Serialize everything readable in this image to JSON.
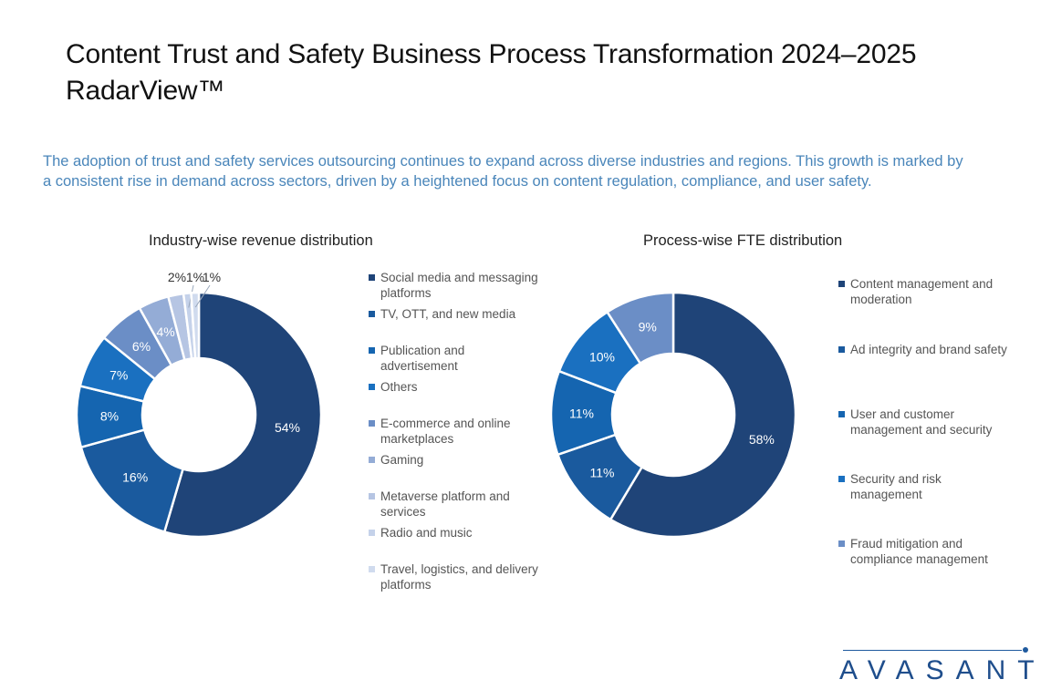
{
  "header": {
    "title": "Content Trust and Safety Business Process Transformation 2024–2025 RadarView™",
    "subtitle": "The adoption of trust and safety services outsourcing continues to expand across diverse industries and regions. This growth is marked by a consistent rise in demand across sectors, driven by a heightened focus on content regulation, compliance, and user safety."
  },
  "brand": {
    "logo_text": "AVASANT",
    "color": "#1f4e8c"
  },
  "chart_data": [
    {
      "type": "pie",
      "variant": "donut",
      "title": "Industry-wise revenue distribution",
      "legend_position": "right",
      "slices": [
        {
          "label": "Social media and messaging platforms",
          "value": 54,
          "display": "54%",
          "color": "#1f4478"
        },
        {
          "label": "TV, OTT, and new media",
          "value": 16,
          "display": "16%",
          "color": "#1a5a9e"
        },
        {
          "label": "Publication and advertisement",
          "value": 8,
          "display": "8%",
          "color": "#1565b0"
        },
        {
          "label": "Others",
          "value": 7,
          "display": "7%",
          "color": "#1a70c0"
        },
        {
          "label": "E-commerce and online marketplaces",
          "value": 6,
          "display": "6%",
          "color": "#6b8ec6"
        },
        {
          "label": "Gaming",
          "value": 4,
          "display": "4%",
          "color": "#94acd6"
        },
        {
          "label": "Metaverse platform and services",
          "value": 2,
          "display": "2%",
          "color": "#b6c5e3"
        },
        {
          "label": "Radio and music",
          "value": 1,
          "display": "1%",
          "color": "#c5d2ea"
        },
        {
          "label": "Travel, logistics, and delivery platforms",
          "value": 1,
          "display": "1%",
          "color": "#d0dbee"
        }
      ]
    },
    {
      "type": "pie",
      "variant": "donut",
      "title": "Process-wise FTE distribution",
      "legend_position": "right",
      "slices": [
        {
          "label": "Content management and moderation",
          "value": 58,
          "display": "58%",
          "color": "#1f4478"
        },
        {
          "label": "Ad integrity and brand safety",
          "value": 11,
          "display": "11%",
          "color": "#1a5a9e"
        },
        {
          "label": "User and customer management and security",
          "value": 11,
          "display": "11%",
          "color": "#1565b0"
        },
        {
          "label": "Security and risk management",
          "value": 10,
          "display": "10%",
          "color": "#1a70c0"
        },
        {
          "label": "Fraud mitigation and compliance management",
          "value": 9,
          "display": "9%",
          "color": "#6b8ec6"
        }
      ]
    }
  ]
}
